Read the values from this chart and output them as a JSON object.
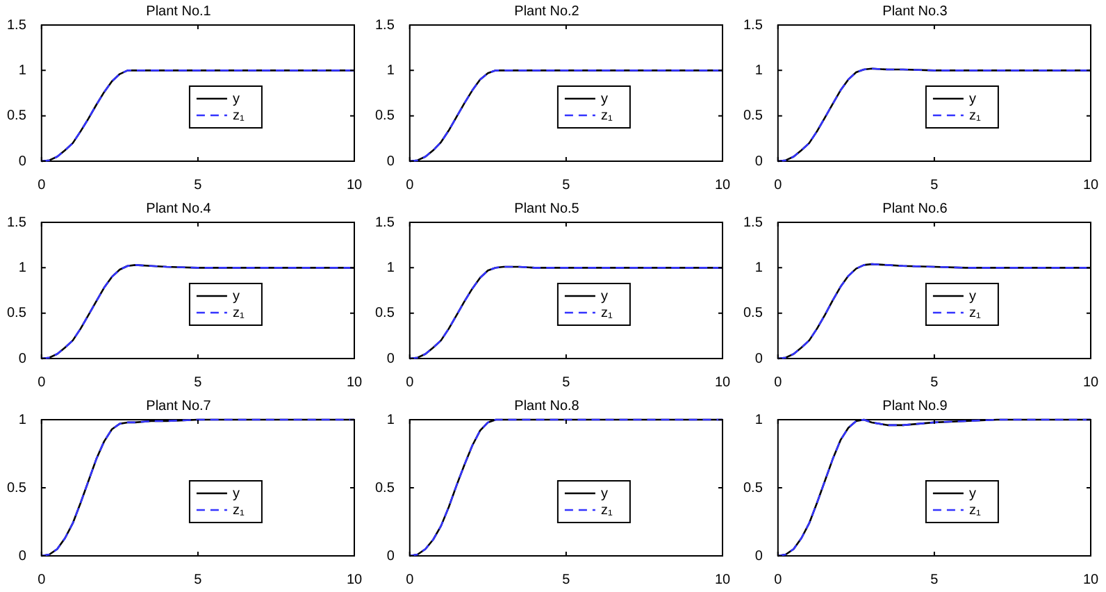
{
  "chart_data": [
    {
      "type": "line",
      "title": "Plant No.1",
      "x": [
        0,
        0.25,
        0.5,
        0.75,
        1,
        1.25,
        1.5,
        1.75,
        2,
        2.25,
        2.5,
        2.75,
        3,
        3.5,
        4,
        5,
        6,
        7,
        8,
        10
      ],
      "xlim": [
        0,
        10
      ],
      "xticks": [
        0,
        5,
        10
      ],
      "ylim": [
        0,
        1.5
      ],
      "yticks": [
        0,
        0.5,
        1,
        1.5
      ],
      "legend": "center",
      "marker": "none",
      "series": [
        {
          "name": "y",
          "color": "#000000",
          "line_style": "solid",
          "values": [
            0,
            0.01,
            0.05,
            0.12,
            0.2,
            0.33,
            0.47,
            0.62,
            0.76,
            0.88,
            0.96,
            1,
            1,
            1,
            1,
            1,
            1,
            1,
            1,
            1
          ]
        },
        {
          "name": "z₁",
          "color": "#3333ff",
          "line_style": "dashed",
          "values": [
            0,
            0.01,
            0.05,
            0.12,
            0.2,
            0.33,
            0.47,
            0.62,
            0.76,
            0.88,
            0.96,
            1,
            1,
            1,
            1,
            1,
            1,
            1,
            1,
            1
          ]
        }
      ]
    },
    {
      "type": "line",
      "title": "Plant No.2",
      "x": [
        0,
        0.25,
        0.5,
        0.75,
        1,
        1.25,
        1.5,
        1.75,
        2,
        2.25,
        2.5,
        2.75,
        3,
        3.5,
        4,
        5,
        6,
        7,
        8,
        10
      ],
      "xlim": [
        0,
        10
      ],
      "xticks": [
        0,
        5,
        10
      ],
      "ylim": [
        0,
        1.5
      ],
      "yticks": [
        0,
        0.5,
        1,
        1.5
      ],
      "legend": "center",
      "marker": "none",
      "series": [
        {
          "name": "y",
          "color": "#000000",
          "line_style": "solid",
          "values": [
            0,
            0.01,
            0.05,
            0.12,
            0.21,
            0.34,
            0.49,
            0.64,
            0.78,
            0.9,
            0.97,
            1,
            1,
            1,
            1,
            1,
            1,
            1,
            1,
            1
          ]
        },
        {
          "name": "z₁",
          "color": "#3333ff",
          "line_style": "dashed",
          "values": [
            0,
            0.01,
            0.05,
            0.12,
            0.21,
            0.34,
            0.49,
            0.64,
            0.78,
            0.9,
            0.97,
            1,
            1,
            1,
            1,
            1,
            1,
            1,
            1,
            1
          ]
        }
      ]
    },
    {
      "type": "line",
      "title": "Plant No.3",
      "x": [
        0,
        0.25,
        0.5,
        0.75,
        1,
        1.25,
        1.5,
        1.75,
        2,
        2.25,
        2.5,
        2.75,
        3,
        3.5,
        4,
        5,
        6,
        7,
        8,
        10
      ],
      "xlim": [
        0,
        10
      ],
      "xticks": [
        0,
        5,
        10
      ],
      "ylim": [
        0,
        1.5
      ],
      "yticks": [
        0,
        0.5,
        1,
        1.5
      ],
      "legend": "center",
      "marker": "none",
      "series": [
        {
          "name": "y",
          "color": "#000000",
          "line_style": "solid",
          "values": [
            0,
            0.01,
            0.05,
            0.12,
            0.2,
            0.33,
            0.48,
            0.63,
            0.78,
            0.9,
            0.98,
            1.01,
            1.02,
            1.01,
            1.01,
            1,
            1,
            1,
            1,
            1
          ]
        },
        {
          "name": "z₁",
          "color": "#3333ff",
          "line_style": "dashed",
          "values": [
            0,
            0.01,
            0.05,
            0.12,
            0.2,
            0.33,
            0.48,
            0.63,
            0.78,
            0.9,
            0.98,
            1.01,
            1.02,
            1.01,
            1.01,
            1,
            1,
            1,
            1,
            1
          ]
        }
      ]
    },
    {
      "type": "line",
      "title": "Plant No.4",
      "x": [
        0,
        0.25,
        0.5,
        0.75,
        1,
        1.25,
        1.5,
        1.75,
        2,
        2.25,
        2.5,
        2.75,
        3,
        3.5,
        4,
        5,
        6,
        7,
        8,
        10
      ],
      "xlim": [
        0,
        10
      ],
      "xticks": [
        0,
        5,
        10
      ],
      "ylim": [
        0,
        1.5
      ],
      "yticks": [
        0,
        0.5,
        1,
        1.5
      ],
      "legend": "center",
      "marker": "none",
      "series": [
        {
          "name": "y",
          "color": "#000000",
          "line_style": "solid",
          "values": [
            0,
            0.01,
            0.05,
            0.12,
            0.2,
            0.33,
            0.48,
            0.63,
            0.78,
            0.9,
            0.98,
            1.02,
            1.03,
            1.02,
            1.01,
            1,
            1,
            1,
            1,
            1
          ]
        },
        {
          "name": "z₁",
          "color": "#3333ff",
          "line_style": "dashed",
          "values": [
            0,
            0.01,
            0.05,
            0.12,
            0.2,
            0.33,
            0.48,
            0.63,
            0.78,
            0.9,
            0.98,
            1.02,
            1.03,
            1.02,
            1.01,
            1,
            1,
            1,
            1,
            1
          ]
        }
      ]
    },
    {
      "type": "line",
      "title": "Plant No.5",
      "x": [
        0,
        0.25,
        0.5,
        0.75,
        1,
        1.25,
        1.5,
        1.75,
        2,
        2.25,
        2.5,
        2.75,
        3,
        3.5,
        4,
        5,
        6,
        7,
        8,
        10
      ],
      "xlim": [
        0,
        10
      ],
      "xticks": [
        0,
        5,
        10
      ],
      "ylim": [
        0,
        1.5
      ],
      "yticks": [
        0,
        0.5,
        1,
        1.5
      ],
      "legend": "center",
      "marker": "none",
      "series": [
        {
          "name": "y",
          "color": "#000000",
          "line_style": "solid",
          "values": [
            0,
            0.01,
            0.05,
            0.12,
            0.2,
            0.33,
            0.48,
            0.63,
            0.77,
            0.89,
            0.97,
            1,
            1.01,
            1.01,
            1,
            1,
            1,
            1,
            1,
            1
          ]
        },
        {
          "name": "z₁",
          "color": "#3333ff",
          "line_style": "dashed",
          "values": [
            0,
            0.01,
            0.05,
            0.12,
            0.2,
            0.33,
            0.48,
            0.63,
            0.77,
            0.89,
            0.97,
            1,
            1.01,
            1.01,
            1,
            1,
            1,
            1,
            1,
            1
          ]
        }
      ]
    },
    {
      "type": "line",
      "title": "Plant No.6",
      "x": [
        0,
        0.25,
        0.5,
        0.75,
        1,
        1.25,
        1.5,
        1.75,
        2,
        2.25,
        2.5,
        2.75,
        3,
        3.5,
        4,
        5,
        6,
        7,
        8,
        10
      ],
      "xlim": [
        0,
        10
      ],
      "xticks": [
        0,
        5,
        10
      ],
      "ylim": [
        0,
        1.5
      ],
      "yticks": [
        0,
        0.5,
        1,
        1.5
      ],
      "legend": "center",
      "marker": "none",
      "series": [
        {
          "name": "y",
          "color": "#000000",
          "line_style": "solid",
          "values": [
            0,
            0.01,
            0.05,
            0.12,
            0.2,
            0.33,
            0.48,
            0.64,
            0.79,
            0.91,
            0.99,
            1.03,
            1.04,
            1.03,
            1.02,
            1.01,
            1,
            1,
            1,
            1
          ]
        },
        {
          "name": "z₁",
          "color": "#3333ff",
          "line_style": "dashed",
          "values": [
            0,
            0.01,
            0.05,
            0.12,
            0.2,
            0.33,
            0.48,
            0.64,
            0.79,
            0.91,
            0.99,
            1.03,
            1.04,
            1.03,
            1.02,
            1.01,
            1,
            1,
            1,
            1
          ]
        }
      ]
    },
    {
      "type": "line",
      "title": "Plant No.7",
      "x": [
        0,
        0.25,
        0.5,
        0.75,
        1,
        1.25,
        1.5,
        1.75,
        2,
        2.25,
        2.5,
        2.75,
        3,
        3.5,
        4,
        5,
        6,
        7,
        8,
        10
      ],
      "xlim": [
        0,
        10
      ],
      "xticks": [
        0,
        5,
        10
      ],
      "ylim": [
        0,
        1
      ],
      "yticks": [
        0,
        0.5,
        1
      ],
      "legend": "center",
      "marker": "none",
      "series": [
        {
          "name": "y",
          "color": "#000000",
          "line_style": "solid",
          "values": [
            0,
            0.01,
            0.05,
            0.13,
            0.24,
            0.39,
            0.55,
            0.71,
            0.84,
            0.93,
            0.97,
            0.98,
            0.98,
            0.99,
            0.99,
            1,
            1,
            1,
            1,
            1
          ]
        },
        {
          "name": "z₁",
          "color": "#3333ff",
          "line_style": "dashed",
          "values": [
            0,
            0.01,
            0.05,
            0.13,
            0.24,
            0.39,
            0.55,
            0.71,
            0.84,
            0.93,
            0.97,
            0.98,
            0.98,
            0.99,
            0.99,
            1,
            1,
            1,
            1,
            1
          ]
        }
      ]
    },
    {
      "type": "line",
      "title": "Plant No.8",
      "x": [
        0,
        0.25,
        0.5,
        0.75,
        1,
        1.25,
        1.5,
        1.75,
        2,
        2.25,
        2.5,
        2.75,
        3,
        3.5,
        4,
        5,
        6,
        7,
        8,
        10
      ],
      "xlim": [
        0,
        10
      ],
      "xticks": [
        0,
        5,
        10
      ],
      "ylim": [
        0,
        1
      ],
      "yticks": [
        0,
        0.5,
        1
      ],
      "legend": "center",
      "marker": "none",
      "series": [
        {
          "name": "y",
          "color": "#000000",
          "line_style": "solid",
          "values": [
            0,
            0.01,
            0.05,
            0.12,
            0.22,
            0.36,
            0.52,
            0.67,
            0.81,
            0.92,
            0.98,
            1,
            1,
            1,
            1,
            1,
            1,
            1,
            1,
            1
          ]
        },
        {
          "name": "z₁",
          "color": "#3333ff",
          "line_style": "dashed",
          "values": [
            0,
            0.01,
            0.05,
            0.12,
            0.22,
            0.36,
            0.52,
            0.67,
            0.81,
            0.92,
            0.98,
            1,
            1,
            1,
            1,
            1,
            1,
            1,
            1,
            1
          ]
        }
      ]
    },
    {
      "type": "line",
      "title": "Plant No.9",
      "x": [
        0,
        0.25,
        0.5,
        0.75,
        1,
        1.25,
        1.5,
        1.75,
        2,
        2.25,
        2.5,
        2.75,
        3,
        3.5,
        4,
        4.5,
        5,
        6,
        7,
        8,
        10
      ],
      "xlim": [
        0,
        10
      ],
      "xticks": [
        0,
        5,
        10
      ],
      "ylim": [
        0,
        1
      ],
      "yticks": [
        0,
        0.5,
        1
      ],
      "legend": "center",
      "marker": "none",
      "series": [
        {
          "name": "y",
          "color": "#000000",
          "line_style": "solid",
          "values": [
            0,
            0.01,
            0.05,
            0.13,
            0.24,
            0.39,
            0.55,
            0.71,
            0.85,
            0.94,
            0.99,
            1,
            0.98,
            0.96,
            0.96,
            0.97,
            0.98,
            0.99,
            1,
            1,
            1
          ]
        },
        {
          "name": "z₁",
          "color": "#3333ff",
          "line_style": "dashed",
          "values": [
            0,
            0.01,
            0.05,
            0.13,
            0.24,
            0.39,
            0.55,
            0.71,
            0.85,
            0.94,
            0.99,
            1,
            0.98,
            0.96,
            0.96,
            0.97,
            0.98,
            0.99,
            1,
            1,
            1
          ]
        }
      ]
    }
  ]
}
